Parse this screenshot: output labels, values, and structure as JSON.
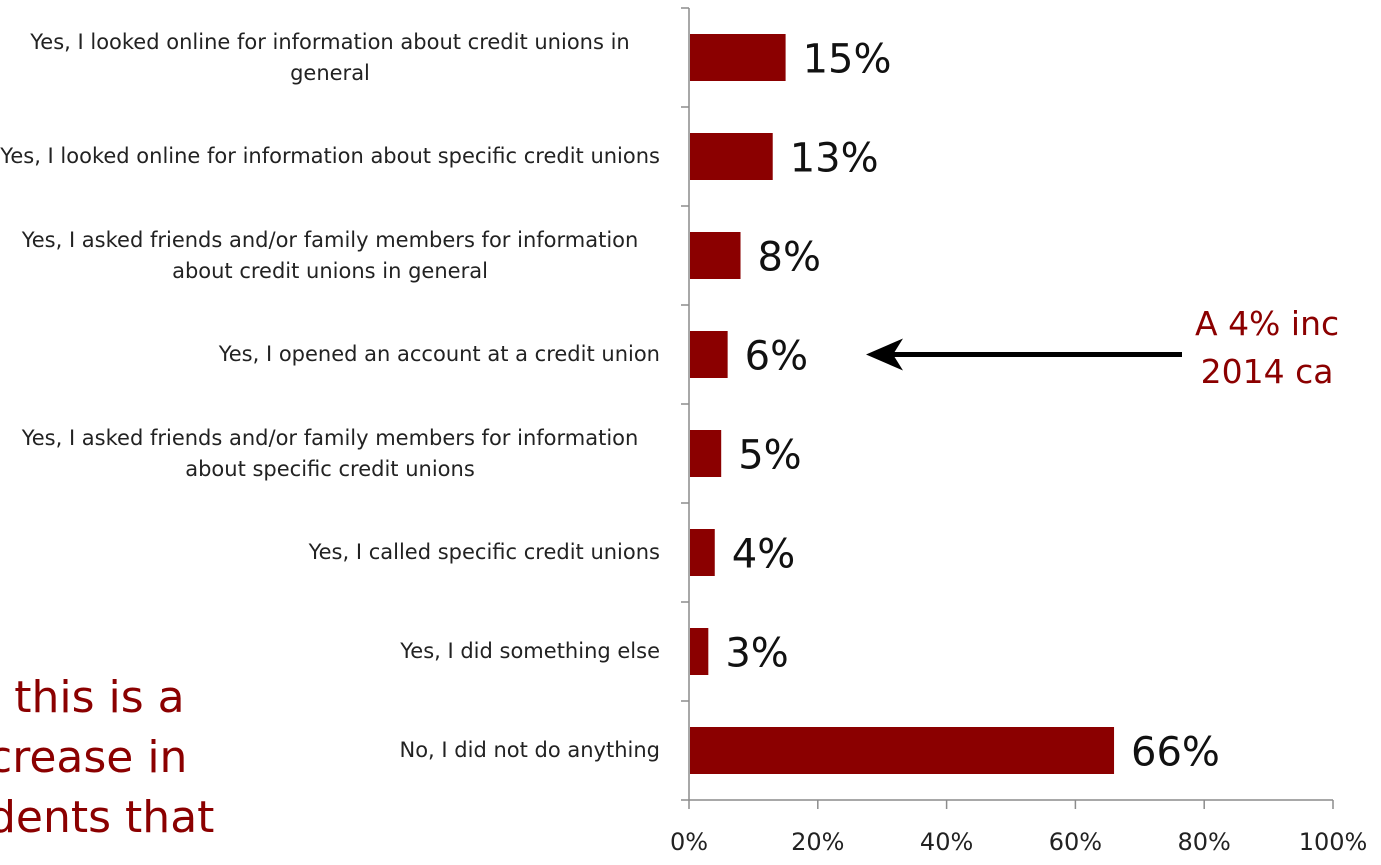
{
  "chart_data": {
    "type": "bar",
    "orientation": "horizontal",
    "categories": [
      "Yes, I looked online for information about credit unions in general",
      "Yes, I looked online for information about specific credit unions",
      "Yes, I asked friends and/or family members for information about credit unions in general",
      "Yes, I opened an account at a credit union",
      "Yes, I asked friends and/or family members for information about specific credit unions",
      "Yes, I called specific credit unions",
      "Yes, I did something else",
      "No, I did not do anything"
    ],
    "values": [
      15,
      13,
      8,
      6,
      5,
      4,
      3,
      66
    ],
    "data_labels": [
      "15%",
      "13%",
      "8%",
      "6%",
      "5%",
      "4%",
      "3%",
      "66%"
    ],
    "xlim": [
      0,
      100
    ],
    "x_ticks": [
      "0%",
      "20%",
      "40%",
      "60%",
      "80%",
      "100%"
    ],
    "bar_color": "#8b0000",
    "grid": false
  },
  "annotation_right": "A 4% inc\n2014 ca",
  "annotation_left": "l this is a\ncrease in\ndents that",
  "colors": {
    "accent": "#8b0000",
    "text": "#222222"
  }
}
